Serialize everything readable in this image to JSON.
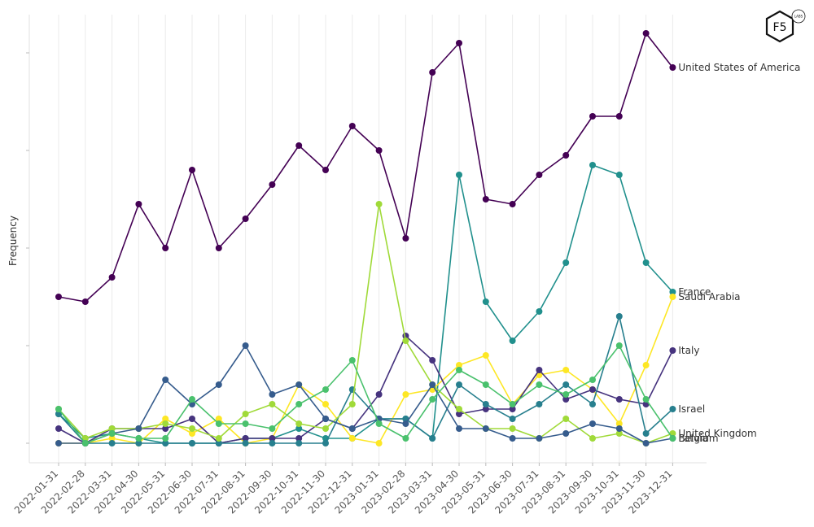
{
  "logo": {
    "main": "F5",
    "sub": "LABS"
  },
  "chart_data": {
    "type": "line",
    "title": "",
    "xlabel": "",
    "ylabel": "Frequency",
    "ylim": [
      -4,
      88
    ],
    "y_ticks": [
      0,
      20,
      40,
      60,
      80
    ],
    "show_y_tick_labels": false,
    "grid": "vertical",
    "categories": [
      "2022-01-31",
      "2022-02-28",
      "2022-03-31",
      "2022-04-30",
      "2022-05-31",
      "2022-06-30",
      "2022-07-31",
      "2022-08-31",
      "2022-09-30",
      "2022-10-31",
      "2022-11-30",
      "2022-12-31",
      "2023-01-31",
      "2023-02-28",
      "2023-03-31",
      "2023-04-30",
      "2023-05-31",
      "2023-06-30",
      "2023-07-31",
      "2023-08-31",
      "2023-09-30",
      "2023-10-31",
      "2023-11-30",
      "2023-12-31"
    ],
    "series": [
      {
        "name": "United States of America",
        "color": "#440154",
        "values": [
          30,
          29,
          34,
          49,
          40,
          56,
          40,
          46,
          53,
          61,
          56,
          65,
          60,
          42,
          76,
          82,
          50,
          49,
          55,
          59,
          67,
          67,
          84,
          77
        ]
      },
      {
        "name": "France",
        "color": "#21908d",
        "values": [
          6,
          1,
          2,
          1,
          0,
          0,
          0,
          1,
          1,
          3,
          1,
          1,
          5,
          5,
          1,
          55,
          29,
          21,
          27,
          37,
          57,
          55,
          37,
          31
        ]
      },
      {
        "name": "Saudi Arabia",
        "color": "#fde725",
        "values": [
          0,
          0,
          1,
          0,
          5,
          2,
          5,
          0,
          1,
          12,
          8,
          1,
          0,
          10,
          11,
          16,
          18,
          8,
          14,
          15,
          11,
          4,
          16,
          30
        ]
      },
      {
        "name": "Italy",
        "color": "#46337e",
        "values": [
          3,
          0,
          3,
          3,
          3,
          5,
          0,
          1,
          1,
          1,
          5,
          3,
          10,
          22,
          17,
          6,
          7,
          7,
          15,
          9,
          11,
          9,
          8,
          19
        ]
      },
      {
        "name": "Israel",
        "color": "#277f8e",
        "values": [
          6,
          0,
          0,
          0,
          0,
          0,
          0,
          0,
          0,
          0,
          0,
          11,
          5,
          5,
          1,
          12,
          8,
          5,
          8,
          12,
          8,
          26,
          2,
          7
        ]
      },
      {
        "name": "United Kingdom",
        "color": "#a0da39",
        "values": [
          7,
          1,
          3,
          3,
          4,
          3,
          1,
          6,
          8,
          4,
          3,
          8,
          49,
          21,
          12,
          7,
          3,
          3,
          1,
          5,
          1,
          2,
          0,
          2
        ]
      },
      {
        "name": "Belgium",
        "color": "#365c8d",
        "values": [
          0,
          0,
          2,
          3,
          13,
          8,
          12,
          20,
          10,
          12,
          5,
          3,
          5,
          4,
          12,
          3,
          3,
          1,
          1,
          2,
          4,
          3,
          0,
          1
        ]
      },
      {
        "name": "Latvia",
        "color": "#4ac16d",
        "values": [
          7,
          0,
          2,
          1,
          1,
          9,
          4,
          4,
          3,
          8,
          11,
          17,
          4,
          1,
          9,
          15,
          12,
          8,
          12,
          10,
          13,
          20,
          9,
          1
        ]
      }
    ],
    "end_labels": [
      {
        "series": "United States of America",
        "text": "United States of America"
      },
      {
        "series": "France",
        "text": "France"
      },
      {
        "series": "Saudi Arabia",
        "text": "Saudi Arabia"
      },
      {
        "series": "Italy",
        "text": "Italy"
      },
      {
        "series": "Israel",
        "text": "Israel"
      },
      {
        "series": "United Kingdom",
        "text": "United Kingdom"
      },
      {
        "series": "Belgium",
        "text": "Belgium"
      },
      {
        "series": "Latvia",
        "text": "Latvia"
      }
    ]
  }
}
